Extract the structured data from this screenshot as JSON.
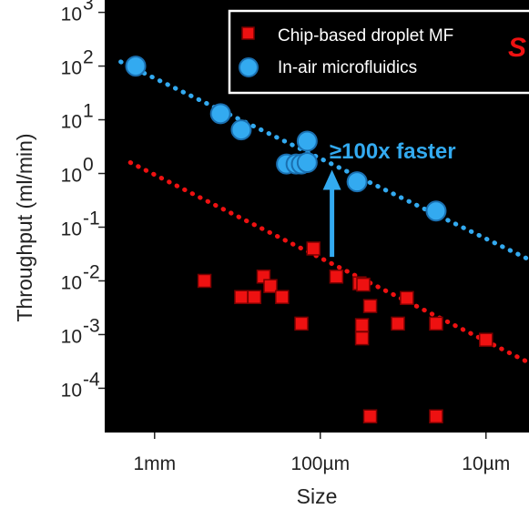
{
  "chart_data": {
    "type": "scatter",
    "xlabel": "Size",
    "ylabel": "Throughput (ml/min)",
    "x_scale": "log",
    "x_reversed": true,
    "x_unit": "m",
    "xlim": [
      0.002,
      5.5e-06
    ],
    "x_ticks": [
      {
        "value": 0.001,
        "label": "1mm"
      },
      {
        "value": 0.0001,
        "label": "100µm"
      },
      {
        "value": 1e-05,
        "label": "10µm"
      }
    ],
    "y_scale": "log",
    "ylim": [
      1.5e-05,
      1700
    ],
    "y_ticks": [
      {
        "exp": 3,
        "base": "10",
        "sup": "3"
      },
      {
        "exp": 2,
        "base": "10",
        "sup": "2"
      },
      {
        "exp": 1,
        "base": "10",
        "sup": "1"
      },
      {
        "exp": 0,
        "base": "10",
        "sup": "0"
      },
      {
        "exp": -1,
        "base": "10",
        "sup": "-1"
      },
      {
        "exp": -2,
        "base": "10",
        "sup": "-2"
      },
      {
        "exp": -3,
        "base": "10",
        "sup": "-3"
      },
      {
        "exp": -4,
        "base": "10",
        "sup": "-4"
      }
    ],
    "background": "#000000",
    "grid": false,
    "legend_position": "top-right",
    "series": [
      {
        "name": "Chip-based droplet MF",
        "marker": "square",
        "color": "#ee1111",
        "points": [
          {
            "x": 0.0005,
            "y": 0.01
          },
          {
            "x": 0.0003,
            "y": 0.005
          },
          {
            "x": 0.00025,
            "y": 0.005
          },
          {
            "x": 0.00022,
            "y": 0.012
          },
          {
            "x": 0.0002,
            "y": 0.008
          },
          {
            "x": 0.00017,
            "y": 0.005
          },
          {
            "x": 0.00013,
            "y": 0.0016
          },
          {
            "x": 0.00011,
            "y": 0.04
          },
          {
            "x": 8e-05,
            "y": 0.012
          },
          {
            "x": 5.8e-05,
            "y": 0.009
          },
          {
            "x": 5.5e-05,
            "y": 0.0085
          },
          {
            "x": 5.6e-05,
            "y": 0.0015
          },
          {
            "x": 5.6e-05,
            "y": 0.00085
          },
          {
            "x": 5e-05,
            "y": 0.0034
          },
          {
            "x": 5e-05,
            "y": 3e-05
          },
          {
            "x": 3.4e-05,
            "y": 0.0016
          },
          {
            "x": 3e-05,
            "y": 0.0048
          },
          {
            "x": 2e-05,
            "y": 0.0016
          },
          {
            "x": 2e-05,
            "y": 3e-05
          },
          {
            "x": 1e-05,
            "y": 0.0008
          }
        ]
      },
      {
        "name": "In-air microfluidics",
        "marker": "circle",
        "color": "#33aaf0",
        "points": [
          {
            "x": 0.0013,
            "y": 100
          },
          {
            "x": 0.0004,
            "y": 13
          },
          {
            "x": 0.0003,
            "y": 6.5
          },
          {
            "x": 0.00016,
            "y": 1.5
          },
          {
            "x": 0.00014,
            "y": 1.5
          },
          {
            "x": 0.00013,
            "y": 1.5
          },
          {
            "x": 0.00012,
            "y": 1.6
          },
          {
            "x": 0.00012,
            "y": 4
          },
          {
            "x": 6e-05,
            "y": 0.7
          },
          {
            "x": 2e-05,
            "y": 0.2
          }
        ]
      }
    ],
    "trend_lines": [
      {
        "color": "#ee1111",
        "style": "dotted",
        "from": {
          "x": 0.0014,
          "y": 1.6
        },
        "to": {
          "x": 5.5e-06,
          "y": 0.0003
        }
      },
      {
        "color": "#33aaf0",
        "style": "dotted",
        "from": {
          "x": 0.0016,
          "y": 120
        },
        "to": {
          "x": 5.5e-06,
          "y": 0.025
        }
      }
    ],
    "annotations": [
      {
        "text": "≥100x faster",
        "color": "#33aaf0"
      }
    ],
    "arrow": {
      "color": "#33aaf0",
      "x": 8.5e-05,
      "y_from": 0.028,
      "y_to": 1.0
    }
  },
  "corner_label": {
    "text": "S",
    "color": "#ee1111"
  }
}
